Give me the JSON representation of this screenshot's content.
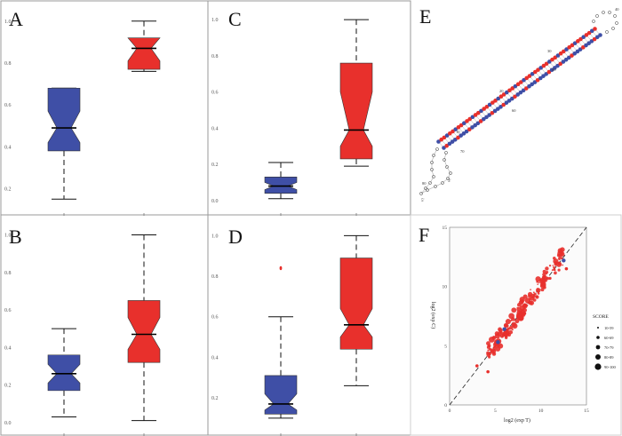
{
  "colors": {
    "blue": "#3f4fa6",
    "red": "#e8302c",
    "frame": "#9a9a9a"
  },
  "chart_data": [
    {
      "type": "box",
      "panel": "A",
      "label": "A",
      "ylim": [
        0.1,
        1.05
      ],
      "y_ticks": [
        {
          "v": 0.2,
          "t": "0.2"
        },
        {
          "v": 0.4,
          "t": "0.4"
        },
        {
          "v": 0.6,
          "t": "0.6"
        },
        {
          "v": 0.8,
          "t": "0.8"
        },
        {
          "v": 1.0,
          "t": "1.0"
        }
      ],
      "boxes": [
        {
          "name": "blue",
          "color": "blue",
          "min": 0.15,
          "q1": 0.38,
          "median": 0.49,
          "q3": 0.68,
          "max": 0.68,
          "notch_lo": 0.42,
          "notch_hi": 0.57
        },
        {
          "name": "red",
          "color": "red",
          "min": 0.76,
          "q1": 0.77,
          "median": 0.87,
          "q3": 0.92,
          "max": 1.0,
          "notch_lo": 0.81,
          "notch_hi": 0.92
        }
      ],
      "outliers": []
    },
    {
      "type": "box",
      "panel": "B",
      "label": "B",
      "ylim": [
        -0.02,
        1.05
      ],
      "y_ticks": [
        {
          "v": 0.0,
          "t": "0.0"
        },
        {
          "v": 0.2,
          "t": "0.2"
        },
        {
          "v": 0.4,
          "t": "0.4"
        },
        {
          "v": 0.6,
          "t": "0.6"
        },
        {
          "v": 0.8,
          "t": "0.8"
        },
        {
          "v": 1.0,
          "t": "1.0"
        }
      ],
      "boxes": [
        {
          "name": "blue",
          "color": "blue",
          "min": 0.03,
          "q1": 0.17,
          "median": 0.26,
          "q3": 0.36,
          "max": 0.5,
          "notch_lo": 0.21,
          "notch_hi": 0.31
        },
        {
          "name": "red",
          "color": "red",
          "min": 0.01,
          "q1": 0.32,
          "median": 0.47,
          "q3": 0.65,
          "max": 1.0,
          "notch_lo": 0.39,
          "notch_hi": 0.56
        }
      ],
      "outliers": []
    },
    {
      "type": "box",
      "panel": "C",
      "label": "C",
      "ylim": [
        -0.05,
        1.05
      ],
      "y_ticks": [
        {
          "v": 0.0,
          "t": "0.0"
        },
        {
          "v": 0.2,
          "t": "0.2"
        },
        {
          "v": 0.4,
          "t": "0.4"
        },
        {
          "v": 0.6,
          "t": "0.6"
        },
        {
          "v": 0.8,
          "t": "0.8"
        },
        {
          "v": 1.0,
          "t": "1.0"
        }
      ],
      "boxes": [
        {
          "name": "blue",
          "color": "blue",
          "min": 0.01,
          "q1": 0.04,
          "median": 0.08,
          "q3": 0.13,
          "max": 0.21,
          "notch_lo": 0.06,
          "notch_hi": 0.1
        },
        {
          "name": "red",
          "color": "red",
          "min": 0.19,
          "q1": 0.23,
          "median": 0.39,
          "q3": 0.76,
          "max": 1.0,
          "notch_lo": 0.3,
          "notch_hi": 0.6
        }
      ],
      "outliers": []
    },
    {
      "type": "box",
      "panel": "D",
      "label": "D",
      "ylim": [
        0.06,
        1.05
      ],
      "y_ticks": [
        {
          "v": 0.2,
          "t": "0.2"
        },
        {
          "v": 0.4,
          "t": "0.4"
        },
        {
          "v": 0.6,
          "t": "0.6"
        },
        {
          "v": 0.8,
          "t": "0.8"
        },
        {
          "v": 1.0,
          "t": "1.0"
        }
      ],
      "boxes": [
        {
          "name": "blue",
          "color": "blue",
          "min": 0.1,
          "q1": 0.12,
          "median": 0.17,
          "q3": 0.31,
          "max": 0.6,
          "notch_lo": 0.14,
          "notch_hi": 0.22
        },
        {
          "name": "red",
          "color": "red",
          "min": 0.26,
          "q1": 0.44,
          "median": 0.56,
          "q3": 0.89,
          "max": 1.0,
          "notch_lo": 0.5,
          "notch_hi": 0.64
        }
      ],
      "outliers": [
        {
          "box": "red-left",
          "value": 0.84
        }
      ]
    },
    {
      "type": "scatter",
      "panel": "F",
      "label": "F",
      "xlabel": "log2 (exp T)",
      "ylabel": "log2 (exp C)",
      "xlim": [
        0,
        15
      ],
      "ylim": [
        0,
        15
      ],
      "x_ticks": [
        {
          "v": 0,
          "t": "0"
        },
        {
          "v": 5,
          "t": "5"
        },
        {
          "v": 10,
          "t": "10"
        },
        {
          "v": 15,
          "t": "15"
        }
      ],
      "y_ticks": [
        {
          "v": 0,
          "t": "0"
        },
        {
          "v": 5,
          "t": "5"
        },
        {
          "v": 10,
          "t": "10"
        },
        {
          "v": 15,
          "t": "15"
        }
      ],
      "legend": {
        "title": "SCORE",
        "items": [
          {
            "label": "10-59",
            "r": 1
          },
          {
            "label": "60-69",
            "r": 1.8
          },
          {
            "label": "70-79",
            "r": 2.4
          },
          {
            "label": "80-89",
            "r": 3
          },
          {
            "label": "90-100",
            "r": 3.6
          }
        ]
      }
    }
  ],
  "structure": {
    "label": "E",
    "bottom_5p": "5'",
    "bottom_3p": "3'",
    "numbers": [
      {
        "t": "10"
      },
      {
        "t": "20"
      },
      {
        "t": "30"
      },
      {
        "t": "40"
      },
      {
        "t": "50"
      },
      {
        "t": "60"
      },
      {
        "t": "70"
      },
      {
        "t": "80"
      }
    ]
  }
}
